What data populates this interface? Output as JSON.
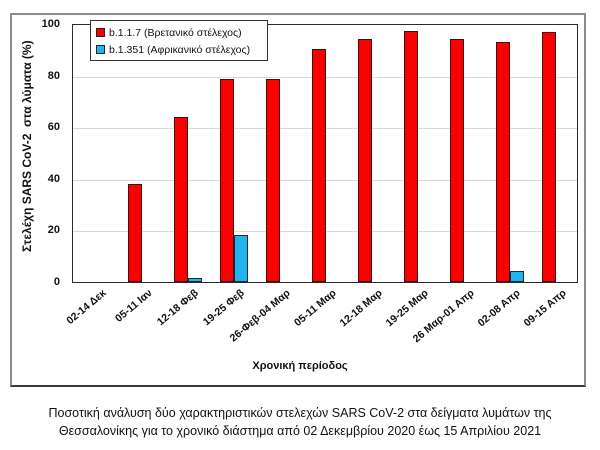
{
  "chart_data": {
    "type": "bar",
    "title": "",
    "xlabel": "Χρονική περίοδος",
    "ylabel": "Στελέχη SARS CoV-2  στα λύματα (%)",
    "ylim": [
      0,
      100
    ],
    "yticks": [
      0,
      20,
      40,
      60,
      80,
      100
    ],
    "grid": true,
    "legend_position": "top-left inside",
    "categories": [
      "02-14 Δεκ",
      "05-11 Ιαν",
      "12-18 Φεβ",
      "19-25 Φεβ",
      "26-Φεβ-04 Μαρ",
      "05-11 Μαρ",
      "12-18 Μαρ",
      "19-25 Μαρ",
      "26 Μαρ-01 Απρ",
      "02-08 Απρ",
      "09-15 Απρ"
    ],
    "series": [
      {
        "name": "b.1.1.7 (Βρετανικό στέλεχος)",
        "color": "#ff0000",
        "values": [
          0,
          37.8,
          64.0,
          78.7,
          78.7,
          90.3,
          94.3,
          97.1,
          94.0,
          93.2,
          96.9
        ]
      },
      {
        "name": "b.1.351 (Αφρικανικό στέλεχος)",
        "color": "#1fb4ee",
        "values": [
          0,
          0,
          1.4,
          18.2,
          0,
          0,
          0,
          0,
          0,
          4.3,
          0
        ]
      }
    ]
  },
  "legend": {
    "items": [
      {
        "label": "b.1.1.7 (Βρετανικό στέλεχος)",
        "color": "#ff0000"
      },
      {
        "label": "b.1.351 (Αφρικανικό στέλεχος)",
        "color": "#1fb4ee"
      }
    ]
  },
  "axis": {
    "y_title": "Στελέχη SARS CoV-2  στα λύματα (%)",
    "x_title": "Χρονική περίοδος",
    "y_ticks": [
      "0",
      "20",
      "40",
      "60",
      "80",
      "100"
    ]
  },
  "caption": {
    "line1": "Ποσοτική ανάλυση δύο χαρακτηριστικών στελεχών SARS CoV-2 στα δείγματα λυμάτων της",
    "line2": "Θεσσαλονίκης για το χρονικό διάστημα από 02 Δεκεμβρίου 2020 έως 15 Απριλίου 2021"
  }
}
